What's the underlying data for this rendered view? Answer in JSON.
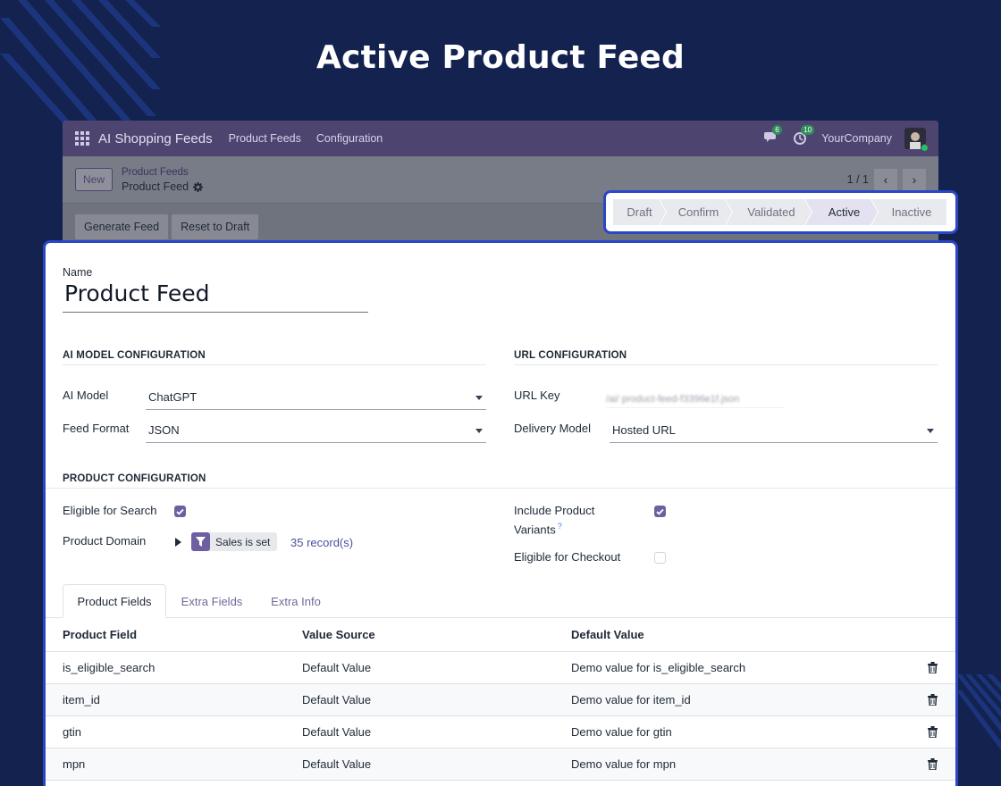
{
  "headline": "Active Product Feed",
  "navbar": {
    "app_name": "AI Shopping Feeds",
    "menu": [
      "Product Feeds",
      "Configuration"
    ],
    "messages_count": "6",
    "activities_count": "10",
    "company": "YourCompany"
  },
  "control_panel": {
    "new_label": "New",
    "breadcrumb_parent": "Product Feeds",
    "breadcrumb_current": "Product Feed",
    "pager": "1 / 1"
  },
  "actions": {
    "generate_label": "Generate Feed",
    "reset_label": "Reset to Draft"
  },
  "statusbar": {
    "stages": [
      "Draft",
      "Confirm",
      "Validated",
      "Active",
      "Inactive"
    ],
    "active_stage": "Active"
  },
  "form": {
    "name_label": "Name",
    "name_value": "Product Feed",
    "ai_section": "AI MODEL CONFIGURATION",
    "ai_model_label": "AI Model",
    "ai_model_value": "ChatGPT",
    "feed_format_label": "Feed Format",
    "feed_format_value": "JSON",
    "url_section": "URL CONFIGURATION",
    "url_key_label": "URL Key",
    "url_key_value": "/ai/ product-feed-f3396e1f.json",
    "delivery_label": "Delivery Model",
    "delivery_value": "Hosted URL",
    "product_section": "PRODUCT CONFIGURATION",
    "eligible_search_label": "Eligible for Search",
    "eligible_search_checked": true,
    "domain_label": "Product Domain",
    "domain_tag": "Sales is set",
    "domain_count": "35 record(s)",
    "variants_label_1": "Include Product",
    "variants_label_2": "Variants",
    "variants_help": "?",
    "variants_checked": true,
    "checkout_label": "Eligible for Checkout",
    "checkout_checked": false
  },
  "tabs": [
    "Product Fields",
    "Extra Fields",
    "Extra Info"
  ],
  "table": {
    "headers": [
      "Product Field",
      "Value Source",
      "Default Value"
    ],
    "rows": [
      {
        "field": "is_eligible_search",
        "source": "Default Value",
        "default": "Demo value for is_eligible_search"
      },
      {
        "field": "item_id",
        "source": "Default Value",
        "default": "Demo value for item_id"
      },
      {
        "field": "gtin",
        "source": "Default Value",
        "default": "Demo value for gtin"
      },
      {
        "field": "mpn",
        "source": "Default Value",
        "default": "Demo value for mpn"
      }
    ]
  },
  "colors": {
    "background": "#13224f",
    "highlight_border": "#2b47c8",
    "brand": "#6e5fa3"
  }
}
